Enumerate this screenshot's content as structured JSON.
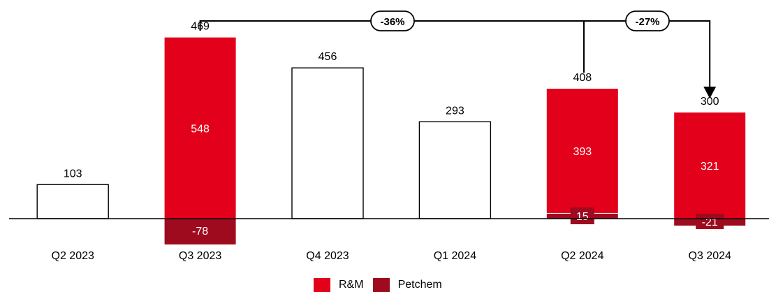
{
  "chart_data": {
    "type": "bar",
    "categories": [
      "Q2 2023",
      "Q3 2023",
      "Q4 2023",
      "Q1 2024",
      "Q2 2024",
      "Q3 2024"
    ],
    "totals": [
      103,
      469,
      456,
      293,
      408,
      300
    ],
    "series": [
      {
        "name": "R&M",
        "color": "#e2001a",
        "values": [
          null,
          548,
          null,
          null,
          393,
          321
        ]
      },
      {
        "name": "Petchem",
        "color": "#9e0a1e",
        "values": [
          null,
          -78,
          null,
          null,
          15,
          -21
        ]
      }
    ],
    "annotations": [
      {
        "from": "Q3 2023",
        "to": "Q3 2024",
        "label": "-36%"
      },
      {
        "from": "Q2 2024",
        "to": "Q3 2024",
        "label": "-27%"
      }
    ],
    "legend_position": "bottom"
  }
}
